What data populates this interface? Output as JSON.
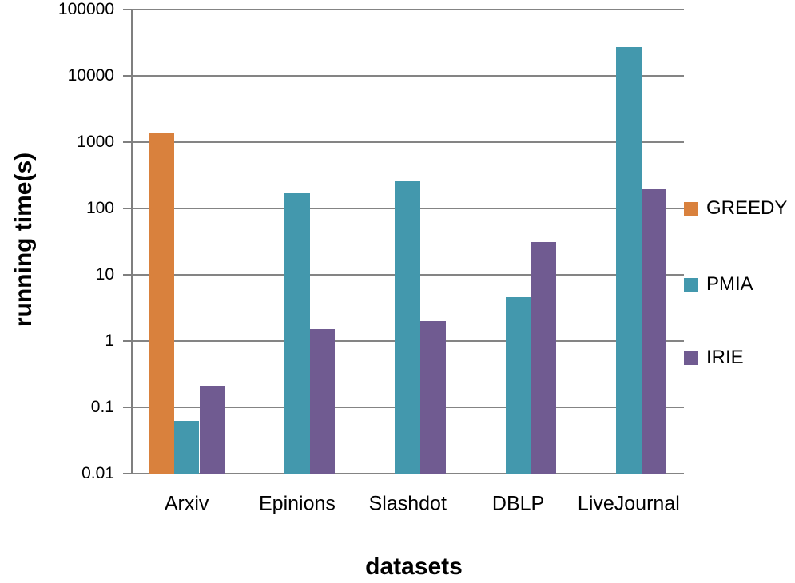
{
  "chart_data": {
    "type": "bar",
    "title": "",
    "xlabel": "datasets",
    "ylabel": "running time(s)",
    "y_scale": "log10",
    "ylim": [
      0.01,
      100000
    ],
    "y_tick_labels": [
      "100000",
      "10000",
      "1000",
      "100",
      "10",
      "1",
      "0.1",
      "0.01"
    ],
    "y_tick_values": [
      100000,
      10000,
      1000,
      100,
      10,
      1,
      0.1,
      0.01
    ],
    "categories": [
      "Arxiv",
      "Epinions",
      "Slashdot",
      "DBLP",
      "LiveJournal"
    ],
    "series": [
      {
        "name": "GREEDY",
        "color": "#D9813D",
        "values": [
          1400,
          null,
          null,
          null,
          null
        ]
      },
      {
        "name": "PMIA",
        "color": "#4398AD",
        "values": [
          0.062,
          170,
          260,
          4.6,
          27000
        ]
      },
      {
        "name": "IRIE",
        "color": "#705B91",
        "values": [
          0.21,
          1.5,
          2.0,
          31,
          195
        ]
      }
    ],
    "legend_position": "right",
    "grid": true
  },
  "style": {
    "gridline_color": "#848484",
    "axis_color": "#7F7F7F",
    "text_color": "#000000",
    "background": "#FFFFFF"
  }
}
